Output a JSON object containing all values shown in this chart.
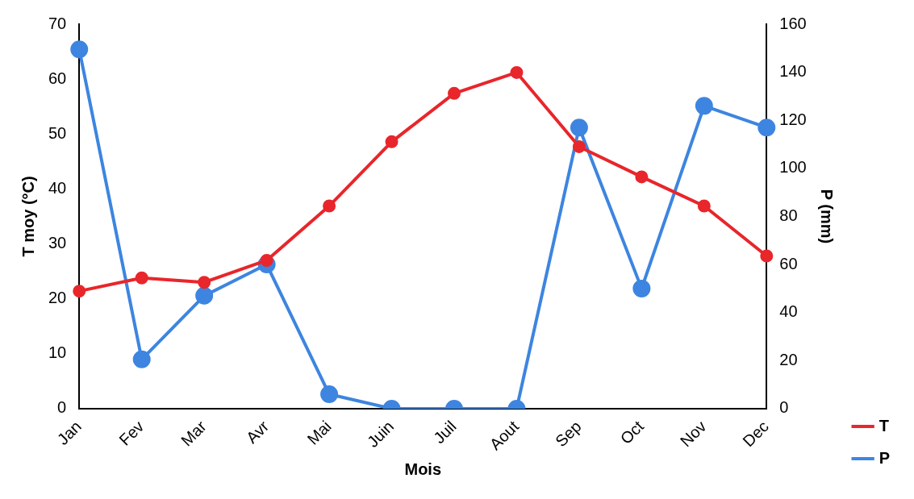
{
  "chart_data": {
    "type": "line",
    "xlabel": "Mois",
    "ylabel": "T moy (°C)",
    "y2label": "P (mm)",
    "categories": [
      "Jan",
      "Fev",
      "Mar",
      "Avr",
      "Mai",
      "Juin",
      "Juil",
      "Aout",
      "Sep",
      "Oct",
      "Nov",
      "Dec"
    ],
    "series": [
      {
        "name": "T",
        "color": "#e8262b",
        "values": [
          21.4,
          23.8,
          23,
          27,
          36.9,
          48.6,
          57.4,
          61.2,
          47.7,
          42.2,
          36.9,
          27.8
        ]
      },
      {
        "name": "P",
        "color": "#3d85e0",
        "axis": "y2",
        "values": [
          149.5,
          20.5,
          47,
          60,
          6,
          0,
          0,
          0,
          117,
          50,
          126,
          117
        ]
      }
    ],
    "ylim": [
      0,
      70
    ],
    "yticks": [
      0,
      10,
      20,
      30,
      40,
      50,
      60,
      70
    ],
    "y2lim": [
      0,
      160
    ],
    "y2ticks": [
      0,
      20,
      40,
      60,
      80,
      100,
      120,
      140,
      160
    ],
    "grid": false,
    "legend": "right",
    "marker": "circle",
    "line_style": "solid"
  }
}
